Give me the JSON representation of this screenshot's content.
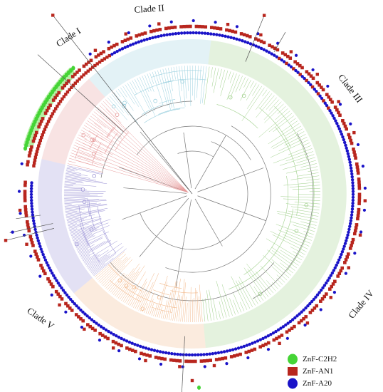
{
  "clades": [
    {
      "label": "Clade I",
      "color": "#e79a9a"
    },
    {
      "label": "Clade II",
      "color": "#9ad0df"
    },
    {
      "label": "Clade III",
      "color": "#9fd08a"
    },
    {
      "label": "Clade IV",
      "color": "#f2b88a"
    },
    {
      "label": "Clade V",
      "color": "#9c94d6"
    }
  ],
  "legend": [
    {
      "label": "ZnF-C2H2",
      "color": "#45d436",
      "shape": "ellipse"
    },
    {
      "label": "ZnF-AN1",
      "color": "#b8261e",
      "shape": "square"
    },
    {
      "label": "ZnF-A20",
      "color": "#1a13c8",
      "shape": "ellipse"
    }
  ],
  "colors": {
    "highlight": "#f7c8d8",
    "c2h2_highlight": "#b6f0a6",
    "outline_line": "#555555"
  }
}
